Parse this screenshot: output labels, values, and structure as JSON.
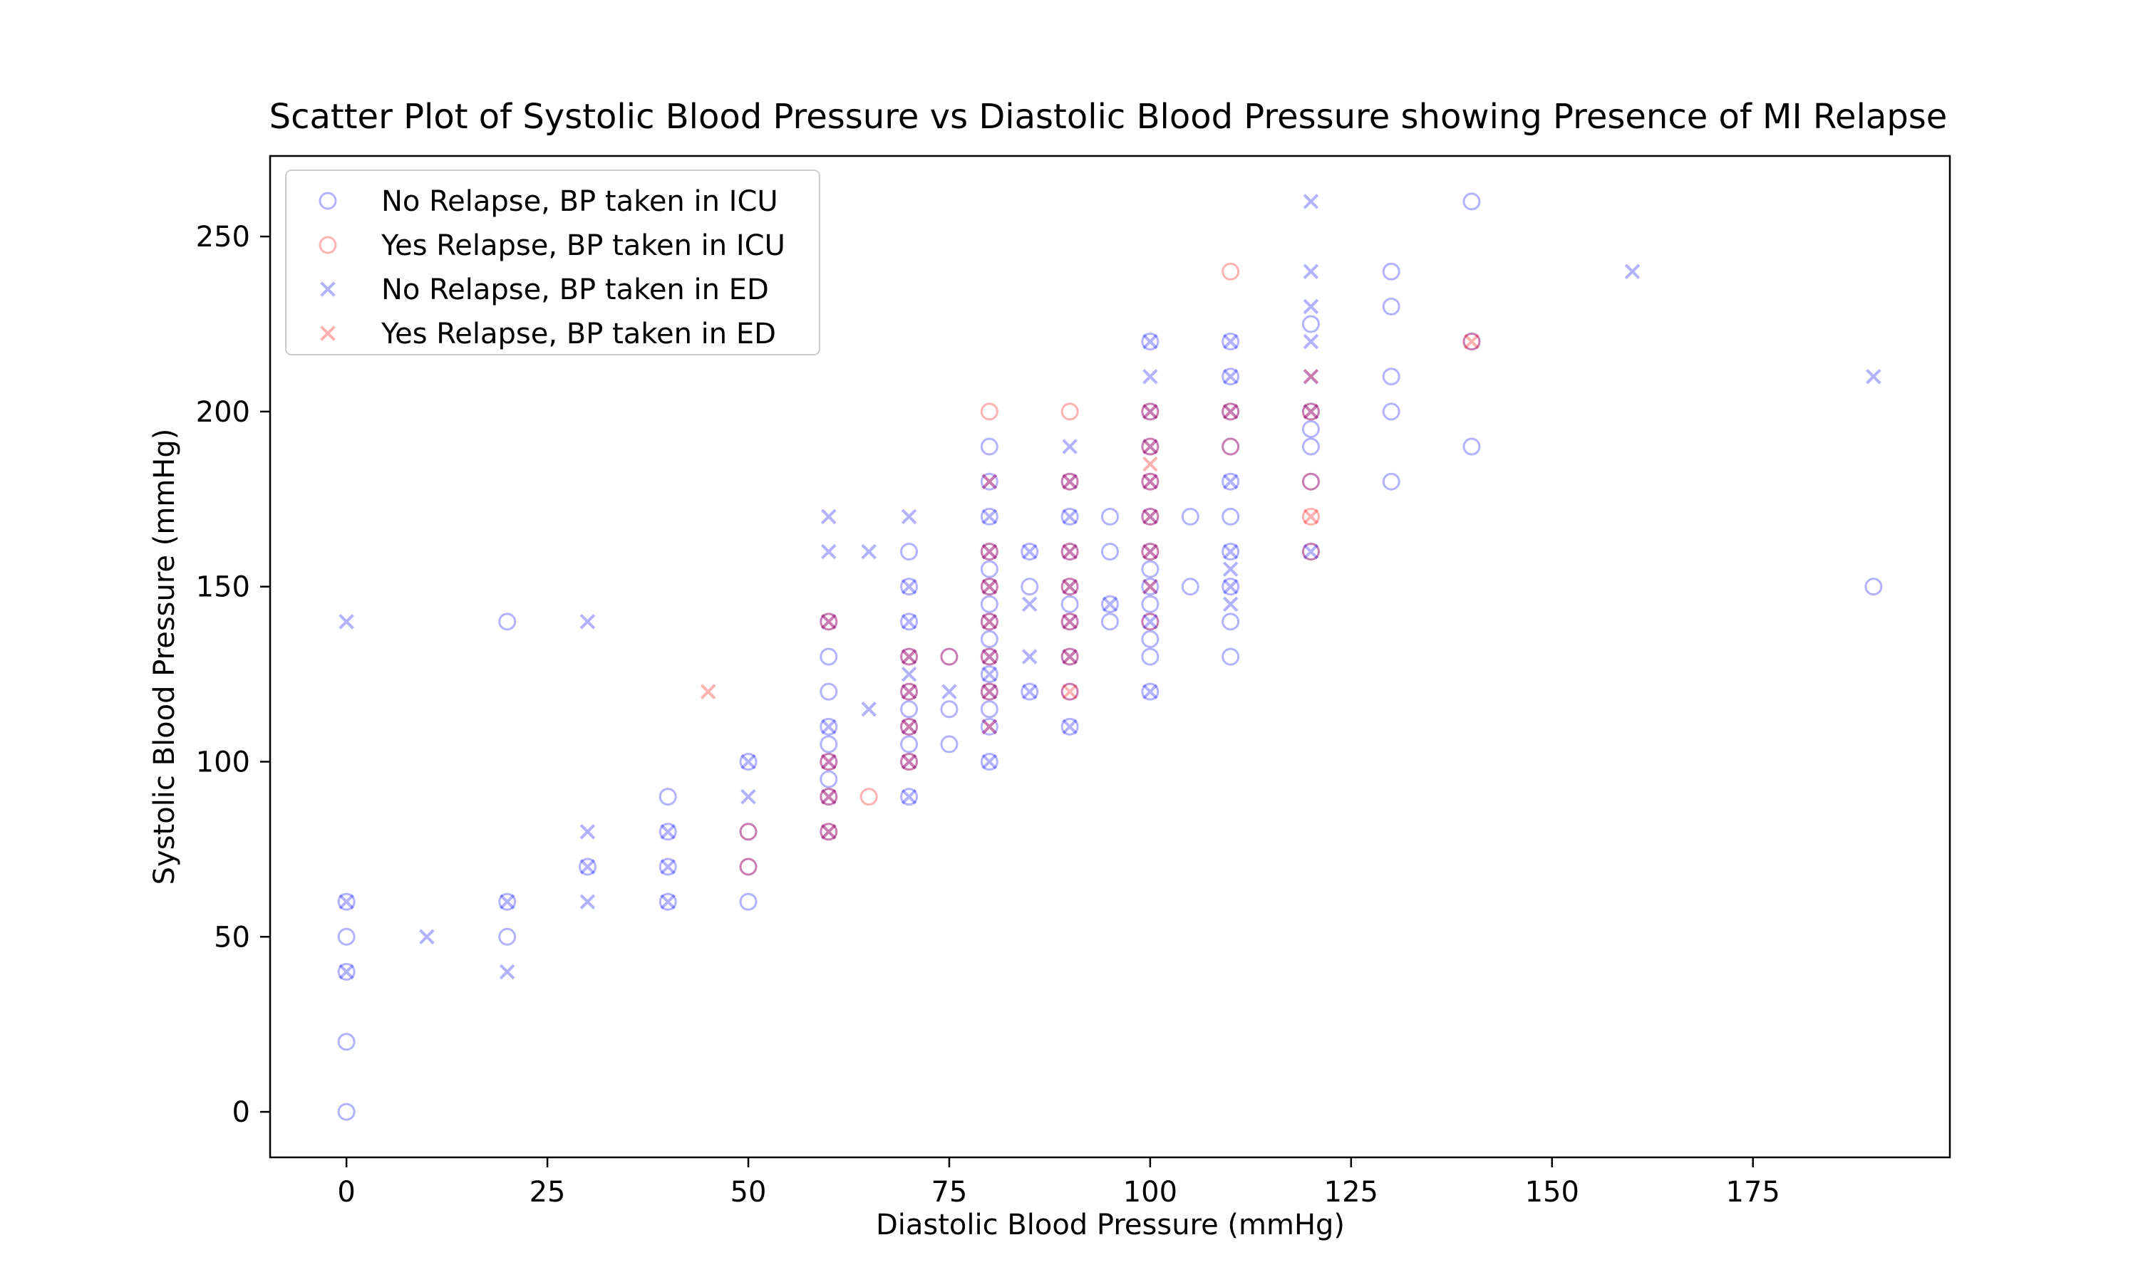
{
  "chart_data": {
    "type": "scatter",
    "title": "Scatter Plot of Systolic Blood Pressure vs Diastolic Blood Pressure showing Presence of MI Relapse",
    "xlabel": "Diastolic Blood Pressure (mmHg)",
    "ylabel": "Systolic Blood Pressure (mmHg)",
    "xlim": [
      -9.5,
      199.5
    ],
    "ylim": [
      -13,
      273
    ],
    "xticks": [
      0,
      25,
      50,
      75,
      100,
      125,
      150,
      175
    ],
    "yticks": [
      0,
      50,
      100,
      150,
      200,
      250
    ],
    "grid": false,
    "legend_position": "top-left",
    "series": [
      {
        "name": "No Relapse, BP taken in ICU",
        "marker": "circle",
        "color": "#0000ff",
        "alpha": 0.3,
        "points": [
          [
            0,
            0
          ],
          [
            0,
            20
          ],
          [
            0,
            40
          ],
          [
            0,
            50
          ],
          [
            0,
            60
          ],
          [
            20,
            50
          ],
          [
            20,
            60
          ],
          [
            20,
            140
          ],
          [
            30,
            70
          ],
          [
            40,
            60
          ],
          [
            40,
            70
          ],
          [
            40,
            80
          ],
          [
            40,
            90
          ],
          [
            50,
            60
          ],
          [
            50,
            70
          ],
          [
            50,
            80
          ],
          [
            50,
            100
          ],
          [
            60,
            80
          ],
          [
            60,
            90
          ],
          [
            60,
            95
          ],
          [
            60,
            100
          ],
          [
            60,
            105
          ],
          [
            60,
            110
          ],
          [
            60,
            120
          ],
          [
            60,
            130
          ],
          [
            60,
            140
          ],
          [
            70,
            90
          ],
          [
            70,
            100
          ],
          [
            70,
            105
          ],
          [
            70,
            110
          ],
          [
            70,
            115
          ],
          [
            70,
            120
          ],
          [
            70,
            130
          ],
          [
            70,
            140
          ],
          [
            70,
            150
          ],
          [
            70,
            160
          ],
          [
            75,
            105
          ],
          [
            75,
            115
          ],
          [
            75,
            130
          ],
          [
            80,
            100
          ],
          [
            80,
            110
          ],
          [
            80,
            115
          ],
          [
            80,
            120
          ],
          [
            80,
            125
          ],
          [
            80,
            130
          ],
          [
            80,
            135
          ],
          [
            80,
            140
          ],
          [
            80,
            145
          ],
          [
            80,
            150
          ],
          [
            80,
            155
          ],
          [
            80,
            160
          ],
          [
            80,
            170
          ],
          [
            80,
            180
          ],
          [
            80,
            190
          ],
          [
            85,
            120
          ],
          [
            85,
            150
          ],
          [
            85,
            160
          ],
          [
            90,
            110
          ],
          [
            90,
            120
          ],
          [
            90,
            130
          ],
          [
            90,
            140
          ],
          [
            90,
            145
          ],
          [
            90,
            150
          ],
          [
            90,
            160
          ],
          [
            90,
            170
          ],
          [
            90,
            180
          ],
          [
            95,
            140
          ],
          [
            95,
            145
          ],
          [
            95,
            160
          ],
          [
            95,
            170
          ],
          [
            100,
            120
          ],
          [
            100,
            130
          ],
          [
            100,
            135
          ],
          [
            100,
            140
          ],
          [
            100,
            145
          ],
          [
            100,
            150
          ],
          [
            100,
            155
          ],
          [
            100,
            160
          ],
          [
            100,
            170
          ],
          [
            100,
            180
          ],
          [
            100,
            190
          ],
          [
            100,
            200
          ],
          [
            100,
            220
          ],
          [
            105,
            150
          ],
          [
            105,
            170
          ],
          [
            110,
            130
          ],
          [
            110,
            140
          ],
          [
            110,
            150
          ],
          [
            110,
            160
          ],
          [
            110,
            170
          ],
          [
            110,
            180
          ],
          [
            110,
            190
          ],
          [
            110,
            200
          ],
          [
            110,
            210
          ],
          [
            110,
            220
          ],
          [
            120,
            160
          ],
          [
            120,
            180
          ],
          [
            120,
            190
          ],
          [
            120,
            195
          ],
          [
            120,
            200
          ],
          [
            120,
            225
          ],
          [
            130,
            180
          ],
          [
            130,
            200
          ],
          [
            130,
            210
          ],
          [
            130,
            230
          ],
          [
            130,
            240
          ],
          [
            140,
            190
          ],
          [
            140,
            220
          ],
          [
            140,
            260
          ],
          [
            190,
            150
          ]
        ]
      },
      {
        "name": "Yes Relapse, BP taken in ICU",
        "marker": "circle",
        "color": "#ff0000",
        "alpha": 0.3,
        "points": [
          [
            50,
            70
          ],
          [
            50,
            80
          ],
          [
            60,
            80
          ],
          [
            60,
            90
          ],
          [
            60,
            100
          ],
          [
            60,
            140
          ],
          [
            65,
            90
          ],
          [
            70,
            100
          ],
          [
            70,
            110
          ],
          [
            70,
            120
          ],
          [
            70,
            130
          ],
          [
            75,
            130
          ],
          [
            80,
            120
          ],
          [
            80,
            130
          ],
          [
            80,
            140
          ],
          [
            80,
            150
          ],
          [
            80,
            160
          ],
          [
            80,
            200
          ],
          [
            90,
            120
          ],
          [
            90,
            130
          ],
          [
            90,
            140
          ],
          [
            90,
            150
          ],
          [
            90,
            160
          ],
          [
            90,
            180
          ],
          [
            90,
            200
          ],
          [
            100,
            140
          ],
          [
            100,
            160
          ],
          [
            100,
            170
          ],
          [
            100,
            180
          ],
          [
            100,
            190
          ],
          [
            100,
            200
          ],
          [
            110,
            190
          ],
          [
            110,
            200
          ],
          [
            110,
            240
          ],
          [
            120,
            160
          ],
          [
            120,
            170
          ],
          [
            120,
            180
          ],
          [
            120,
            200
          ],
          [
            140,
            220
          ]
        ]
      },
      {
        "name": "No Relapse, BP taken in ED",
        "marker": "x",
        "color": "#0000ff",
        "alpha": 0.3,
        "points": [
          [
            0,
            40
          ],
          [
            0,
            60
          ],
          [
            0,
            140
          ],
          [
            10,
            50
          ],
          [
            20,
            40
          ],
          [
            20,
            60
          ],
          [
            30,
            60
          ],
          [
            30,
            70
          ],
          [
            30,
            80
          ],
          [
            30,
            140
          ],
          [
            40,
            60
          ],
          [
            40,
            70
          ],
          [
            40,
            80
          ],
          [
            50,
            90
          ],
          [
            50,
            100
          ],
          [
            60,
            80
          ],
          [
            60,
            90
          ],
          [
            60,
            100
          ],
          [
            60,
            110
          ],
          [
            60,
            140
          ],
          [
            60,
            160
          ],
          [
            60,
            170
          ],
          [
            65,
            115
          ],
          [
            65,
            160
          ],
          [
            70,
            90
          ],
          [
            70,
            100
          ],
          [
            70,
            110
          ],
          [
            70,
            120
          ],
          [
            70,
            125
          ],
          [
            70,
            130
          ],
          [
            70,
            140
          ],
          [
            70,
            150
          ],
          [
            70,
            170
          ],
          [
            75,
            120
          ],
          [
            80,
            100
          ],
          [
            80,
            110
          ],
          [
            80,
            120
          ],
          [
            80,
            125
          ],
          [
            80,
            130
          ],
          [
            80,
            140
          ],
          [
            80,
            150
          ],
          [
            80,
            160
          ],
          [
            80,
            170
          ],
          [
            80,
            180
          ],
          [
            85,
            120
          ],
          [
            85,
            130
          ],
          [
            85,
            145
          ],
          [
            85,
            160
          ],
          [
            90,
            110
          ],
          [
            90,
            130
          ],
          [
            90,
            140
          ],
          [
            90,
            150
          ],
          [
            90,
            160
          ],
          [
            90,
            170
          ],
          [
            90,
            180
          ],
          [
            90,
            190
          ],
          [
            95,
            145
          ],
          [
            100,
            120
          ],
          [
            100,
            140
          ],
          [
            100,
            150
          ],
          [
            100,
            160
          ],
          [
            100,
            170
          ],
          [
            100,
            180
          ],
          [
            100,
            190
          ],
          [
            100,
            200
          ],
          [
            100,
            210
          ],
          [
            100,
            220
          ],
          [
            110,
            145
          ],
          [
            110,
            150
          ],
          [
            110,
            155
          ],
          [
            110,
            160
          ],
          [
            110,
            180
          ],
          [
            110,
            200
          ],
          [
            110,
            210
          ],
          [
            110,
            220
          ],
          [
            120,
            160
          ],
          [
            120,
            200
          ],
          [
            120,
            210
          ],
          [
            120,
            220
          ],
          [
            120,
            230
          ],
          [
            120,
            240
          ],
          [
            120,
            260
          ],
          [
            160,
            240
          ],
          [
            190,
            210
          ]
        ]
      },
      {
        "name": "Yes Relapse, BP taken in ED",
        "marker": "x",
        "color": "#ff0000",
        "alpha": 0.3,
        "points": [
          [
            45,
            120
          ],
          [
            60,
            80
          ],
          [
            60,
            90
          ],
          [
            60,
            100
          ],
          [
            60,
            140
          ],
          [
            70,
            100
          ],
          [
            70,
            110
          ],
          [
            70,
            120
          ],
          [
            70,
            130
          ],
          [
            80,
            110
          ],
          [
            80,
            120
          ],
          [
            80,
            130
          ],
          [
            80,
            140
          ],
          [
            80,
            150
          ],
          [
            80,
            160
          ],
          [
            80,
            180
          ],
          [
            90,
            120
          ],
          [
            90,
            130
          ],
          [
            90,
            140
          ],
          [
            90,
            150
          ],
          [
            90,
            160
          ],
          [
            90,
            180
          ],
          [
            100,
            150
          ],
          [
            100,
            160
          ],
          [
            100,
            170
          ],
          [
            100,
            180
          ],
          [
            100,
            185
          ],
          [
            100,
            190
          ],
          [
            100,
            200
          ],
          [
            110,
            200
          ],
          [
            120,
            170
          ],
          [
            120,
            200
          ],
          [
            120,
            210
          ],
          [
            140,
            220
          ]
        ]
      }
    ]
  }
}
